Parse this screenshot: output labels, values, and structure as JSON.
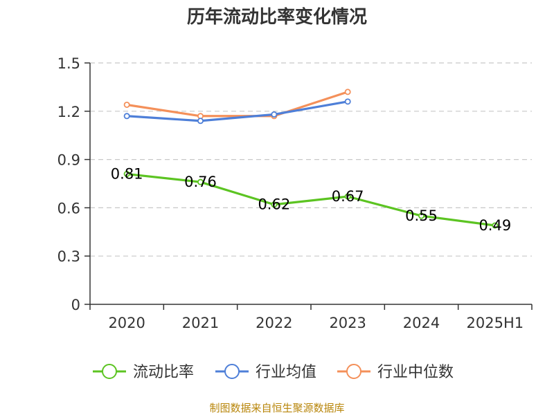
{
  "chart_data": {
    "type": "line",
    "title": "历年流动比率变化情况",
    "categories": [
      "2020",
      "2021",
      "2022",
      "2023",
      "2024",
      "2025H1"
    ],
    "ylim": [
      0,
      1.5
    ],
    "yticks": [
      "0",
      "0.3",
      "0.6",
      "0.9",
      "1.2",
      "1.5"
    ],
    "grid": true,
    "legend_position": "bottom",
    "series": [
      {
        "name": "流动比率",
        "color": "#5cc422",
        "values": [
          0.81,
          0.76,
          0.62,
          0.67,
          0.55,
          0.49
        ],
        "labels": [
          "0.81",
          "0.76",
          "0.62",
          "0.67",
          "0.55",
          "0.49"
        ]
      },
      {
        "name": "行业均值",
        "color": "#4e7fd8",
        "values": [
          1.17,
          1.14,
          1.18,
          1.26,
          null,
          null
        ]
      },
      {
        "name": "行业中位数",
        "color": "#f4905a",
        "values": [
          1.24,
          1.17,
          1.17,
          1.32,
          null,
          null
        ]
      }
    ]
  },
  "source_note": "制图数据来自恒生聚源数据库"
}
